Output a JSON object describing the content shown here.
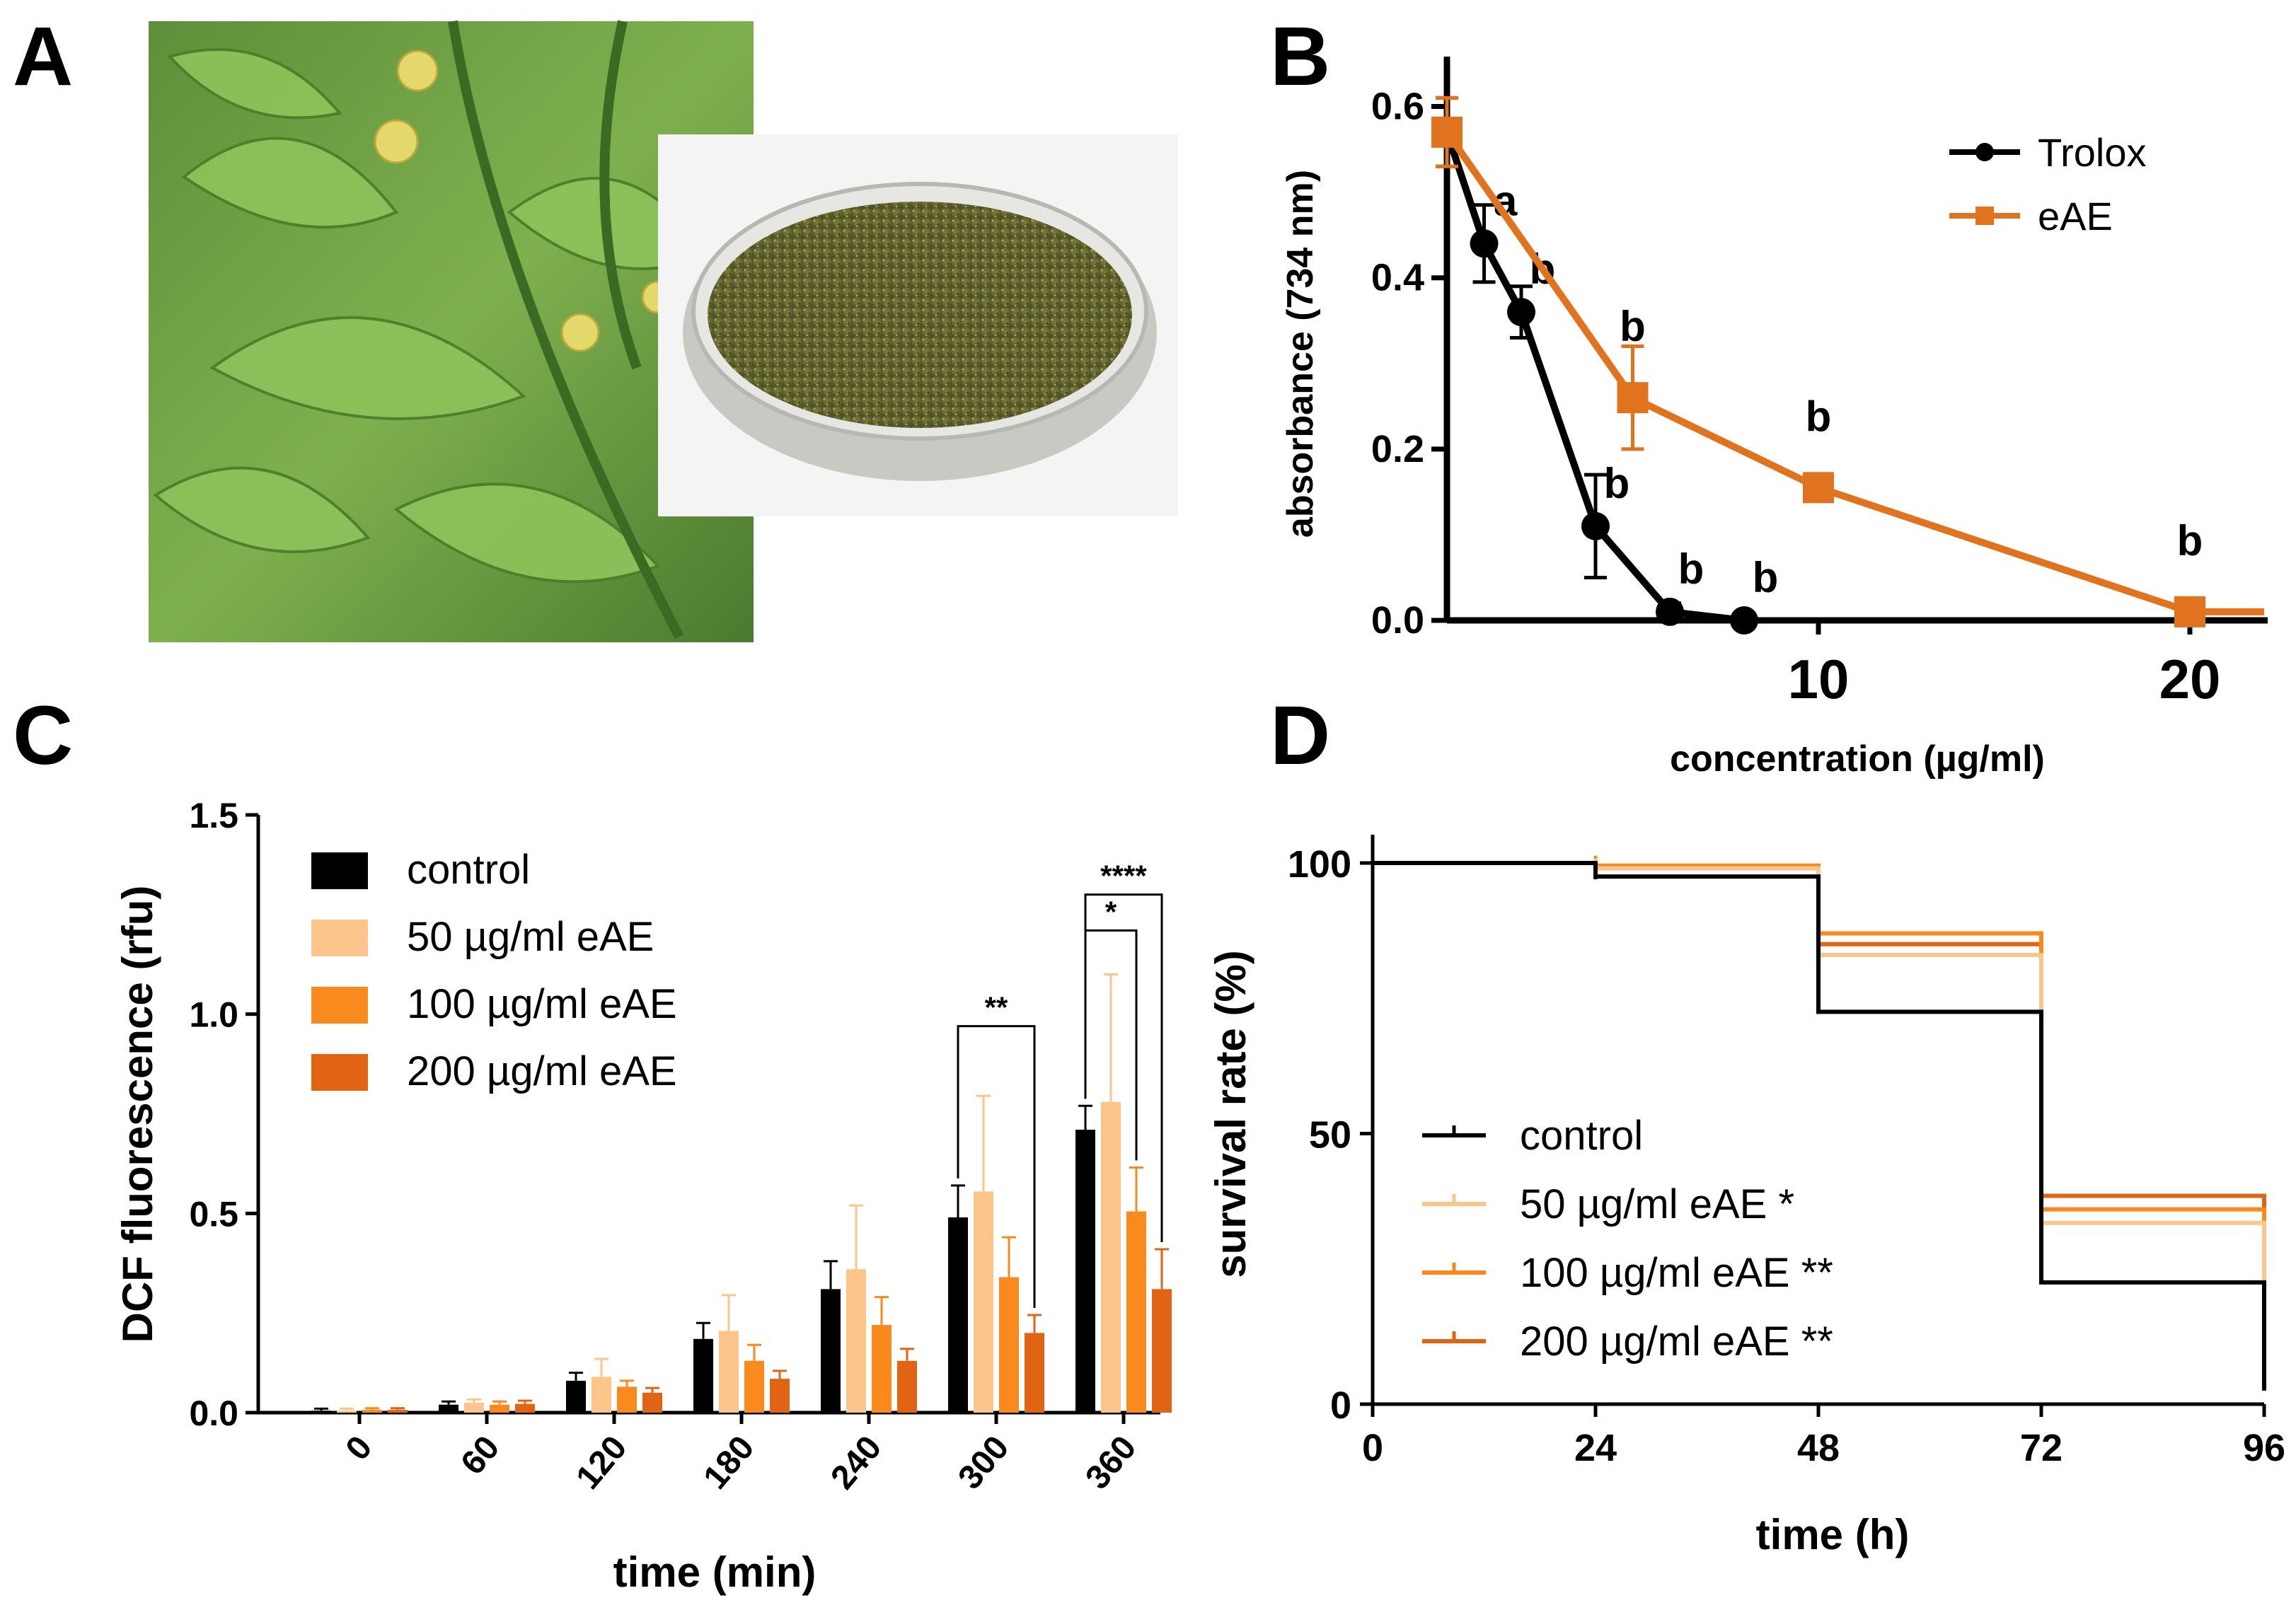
{
  "colors": {
    "black": "#000000",
    "orange_eAE": "#E1721E",
    "c50": "#FBC58B",
    "c100": "#FA8A1E",
    "c200": "#E06414"
  },
  "panels": {
    "a": {
      "letter": "A"
    },
    "b": {
      "letter": "B"
    },
    "c": {
      "letter": "C"
    },
    "d": {
      "letter": "D"
    }
  },
  "chart_data": [
    {
      "panel": "B",
      "type": "line",
      "xlabel": "concentration (µg/ml)",
      "ylabel": "absorbance (734 nm)",
      "xlim": [
        0,
        22
      ],
      "ylim": [
        0,
        0.65
      ],
      "xticks": [
        "10",
        "20"
      ],
      "yticks": [
        "0.0",
        "0.2",
        "0.4",
        "0.6"
      ],
      "legend_position": "top-right",
      "series": [
        {
          "name": "Trolox",
          "color": "#000000",
          "marker": "circle",
          "points": [
            {
              "x": 0,
              "y": 0.57,
              "err": 0.04,
              "label": ""
            },
            {
              "x": 1,
              "y": 0.44,
              "err": 0.045,
              "label": "a"
            },
            {
              "x": 2,
              "y": 0.36,
              "err": 0.03,
              "label": "b"
            },
            {
              "x": 4,
              "y": 0.11,
              "err": 0.06,
              "label": "b"
            },
            {
              "x": 6,
              "y": 0.01,
              "err": 0.01,
              "label": "b"
            },
            {
              "x": 8,
              "y": 0.0,
              "err": 0.0,
              "label": "b"
            }
          ]
        },
        {
          "name": "eAE",
          "color": "#E1721E",
          "marker": "square",
          "points": [
            {
              "x": 0,
              "y": 0.57,
              "err": 0.04,
              "label": ""
            },
            {
              "x": 5,
              "y": 0.26,
              "err": 0.06,
              "label": "b"
            },
            {
              "x": 10,
              "y": 0.155,
              "err": 0.01,
              "label": "b"
            },
            {
              "x": 20,
              "y": 0.01,
              "err": 0.005,
              "label": "b"
            },
            {
              "x": 22,
              "y": 0.01,
              "err": 0,
              "label": ""
            }
          ]
        }
      ]
    },
    {
      "panel": "C",
      "type": "bar",
      "xlabel": "time (min)",
      "ylabel": "DCF fluorescence (rfu)",
      "ylim": [
        0,
        1.5
      ],
      "yticks": [
        "0.0",
        "0.5",
        "1.0",
        "1.5"
      ],
      "categories": [
        "0",
        "60",
        "120",
        "180",
        "240",
        "300",
        "360"
      ],
      "legend_position": "top-left",
      "series": [
        {
          "name": "control",
          "color": "#000000",
          "values": [
            0.005,
            0.02,
            0.08,
            0.185,
            0.31,
            0.49,
            0.71
          ],
          "errors": [
            0.005,
            0.008,
            0.02,
            0.04,
            0.07,
            0.08,
            0.06
          ]
        },
        {
          "name": "50 µg/ml eAE",
          "color": "#FBC58B",
          "values": [
            0.005,
            0.025,
            0.09,
            0.205,
            0.36,
            0.555,
            0.78
          ],
          "errors": [
            0.005,
            0.008,
            0.045,
            0.09,
            0.16,
            0.24,
            0.32
          ]
        },
        {
          "name": "100 µg/ml eAE",
          "color": "#FA8A1E",
          "values": [
            0.007,
            0.02,
            0.065,
            0.13,
            0.22,
            0.34,
            0.505
          ],
          "errors": [
            0.004,
            0.008,
            0.015,
            0.04,
            0.07,
            0.1,
            0.11
          ]
        },
        {
          "name": "200 µg/ml eAE",
          "color": "#E06414",
          "values": [
            0.007,
            0.022,
            0.05,
            0.085,
            0.13,
            0.2,
            0.31
          ],
          "errors": [
            0.004,
            0.008,
            0.012,
            0.02,
            0.03,
            0.045,
            0.1
          ]
        }
      ],
      "significance": [
        {
          "category": "300",
          "from_series": 0,
          "to_series": 3,
          "label": "**",
          "level": 0.97
        },
        {
          "category": "360",
          "from_series": 0,
          "to_series": 2,
          "label": "*",
          "level": 1.21
        },
        {
          "category": "360",
          "from_series": 0,
          "to_series": 3,
          "label": "****",
          "level": 1.3
        }
      ]
    },
    {
      "panel": "D",
      "type": "line",
      "subtype": "kaplan-meier",
      "xlabel": "time (h)",
      "ylabel": "survival rate (%)",
      "xlim": [
        0,
        96
      ],
      "ylim": [
        0,
        100
      ],
      "xticks": [
        "0",
        "24",
        "48",
        "72",
        "96"
      ],
      "yticks": [
        "0",
        "50",
        "100"
      ],
      "legend_position": "bottom-left",
      "series": [
        {
          "name": "control",
          "color": "#000000",
          "steps": [
            [
              0,
              100
            ],
            [
              24,
              97.5
            ],
            [
              48,
              72.5
            ],
            [
              72,
              22.5
            ],
            [
              96,
              2.5
            ]
          ]
        },
        {
          "name": "50 µg/ml eAE *",
          "color": "#FBC58B",
          "steps": [
            [
              0,
              100
            ],
            [
              24,
              99
            ],
            [
              48,
              83
            ],
            [
              72,
              33.5
            ],
            [
              96,
              22.5
            ]
          ]
        },
        {
          "name": "100 µg/ml eAE **",
          "color": "#FA8A1E",
          "steps": [
            [
              0,
              100
            ],
            [
              24,
              99.5
            ],
            [
              48,
              87
            ],
            [
              72,
              36
            ],
            [
              96,
              25
            ]
          ]
        },
        {
          "name": "200 µg/ml eAE **",
          "color": "#E06414",
          "steps": [
            [
              0,
              100
            ],
            [
              24,
              99.5
            ],
            [
              48,
              85
            ],
            [
              72,
              38.5
            ],
            [
              96,
              28
            ]
          ]
        }
      ]
    }
  ]
}
